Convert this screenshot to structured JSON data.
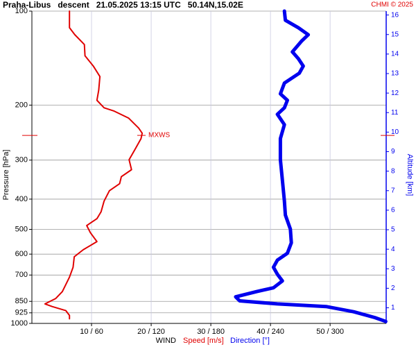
{
  "chart_data": {
    "type": "line",
    "title": "Praha-Libus   descent   21.05.2025 13:15 UTC   50.14N,15.02E",
    "credit": "CHMI © 2025",
    "ylabel": "Pressure [hPa]",
    "y2label": "Altitude [km]",
    "xlabel": "WIND",
    "log_y": true,
    "grid": true,
    "ylim": [
      100,
      1000
    ],
    "yticks": [
      100,
      200,
      300,
      400,
      500,
      600,
      700,
      850,
      925,
      1000
    ],
    "y2lim": [
      0.2,
      16.2
    ],
    "y2ticks": [
      1,
      2,
      3,
      4,
      5,
      6,
      7,
      8,
      9,
      10,
      11,
      12,
      13,
      14,
      15,
      16
    ],
    "xlim": [
      0,
      59.4
    ],
    "x2lim": [
      0,
      356.4
    ],
    "xticks": [
      {
        "value": 10,
        "label": "10 / 60"
      },
      {
        "value": 20,
        "label": "20 / 120"
      },
      {
        "value": 30,
        "label": "30 / 180"
      },
      {
        "value": 40,
        "label": "40 / 240"
      },
      {
        "value": 50,
        "label": "50 / 300"
      }
    ],
    "annotation": {
      "text": "MXWS",
      "pressure": 250
    },
    "series": [
      {
        "name": "Speed [m/s]",
        "color": "#e00000",
        "axis": "x",
        "pressure": [
          100,
          113,
          119,
          128,
          139,
          150,
          162,
          179,
          193,
          204,
          209,
          220,
          237,
          246,
          256,
          277,
          299,
          322,
          339,
          357,
          376,
          406,
          439,
          462,
          486,
          512,
          547,
          581,
          612,
          661,
          711,
          791,
          832,
          866,
          883,
          910,
          943,
          967
        ],
        "values": [
          6.3,
          6.3,
          7.2,
          8.8,
          8.9,
          10.3,
          11.4,
          11.2,
          10.9,
          12.1,
          13.8,
          16.2,
          17.9,
          18.5,
          18.3,
          17.3,
          16.3,
          16.7,
          15.0,
          14.7,
          13.0,
          12.1,
          11.6,
          10.9,
          9.2,
          9.8,
          10.9,
          8.6,
          7.1,
          6.9,
          6.3,
          5.1,
          4.0,
          2.2,
          3.4,
          5.7,
          6.3,
          6.3
        ]
      },
      {
        "name": "Direction [°]",
        "color": "#0000ee",
        "axis": "x2",
        "pressure": [
          100,
          107,
          113,
          119,
          125,
          135,
          142,
          150,
          158,
          170,
          184,
          193,
          204,
          214,
          231,
          256,
          299,
          348,
          406,
          450,
          499,
          552,
          596,
          627,
          661,
          696,
          731,
          769,
          791,
          822,
          847,
          866,
          883,
          918,
          958,
          986
        ],
        "values": [
          254,
          255,
          268,
          278,
          271,
          262,
          268,
          273,
          269,
          254,
          250,
          257,
          254,
          247,
          254,
          250,
          250,
          252,
          254,
          255,
          260,
          261,
          257,
          247,
          243,
          247,
          252,
          243,
          226,
          205,
          209,
          247,
          296,
          324,
          345,
          356
        ]
      }
    ]
  }
}
